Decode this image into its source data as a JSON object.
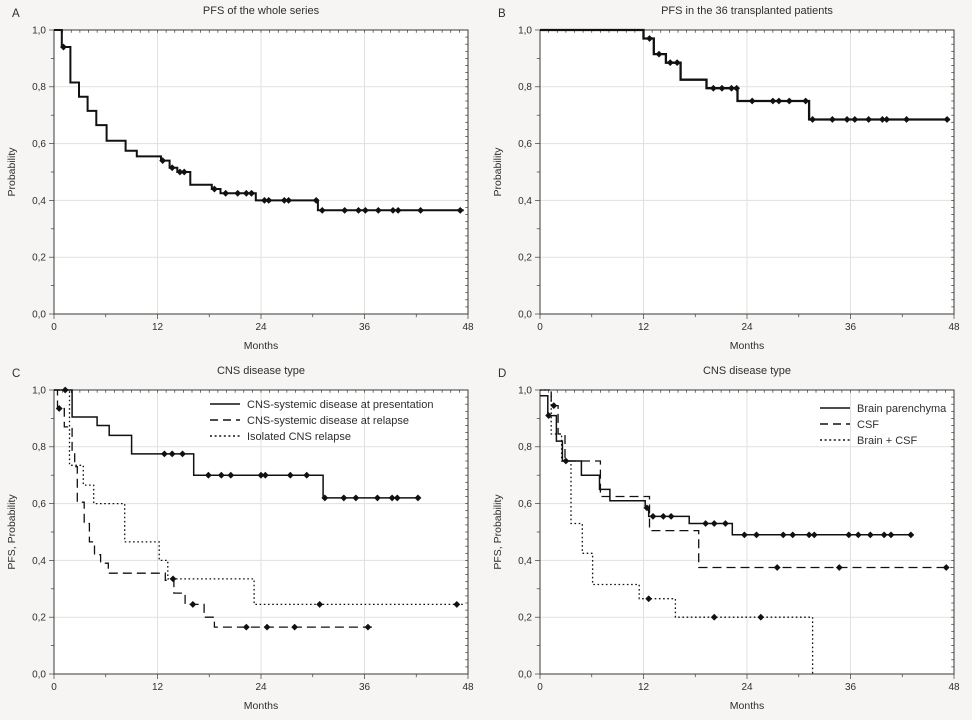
{
  "figure": {
    "background": "#f6f5f3",
    "plot_bg": "#ffffff",
    "grid_color": "#e3e1df",
    "frame_color": "#3a3a3a",
    "line_color": "#111111",
    "censor_color": "#111111"
  },
  "axes": {
    "x": {
      "label": "Months",
      "range": [
        0,
        48
      ],
      "major_ticks": [
        0,
        12,
        24,
        36,
        48
      ],
      "tick_labels": [
        "0",
        "12",
        "24",
        "36",
        "48"
      ],
      "minor_ticks": [
        6,
        18,
        30,
        42
      ],
      "grid": [
        12,
        24,
        36
      ]
    },
    "y": {
      "range": [
        0,
        1
      ],
      "major_ticks": [
        0,
        0.2,
        0.4,
        0.6,
        0.8,
        1.0
      ],
      "tick_labels": [
        "0,0",
        "0,2",
        "0,4",
        "0,6",
        "0,8",
        "1,0"
      ],
      "minor_ticks": [
        0.1,
        0.3,
        0.5,
        0.7,
        0.9
      ],
      "grid": [
        0.2,
        0.4,
        0.6,
        0.8
      ]
    }
  },
  "chart_data": [
    {
      "letter": "A",
      "title": "PFS of the whole series",
      "type": "line",
      "xlabel": "Months",
      "ylabel": "Probability",
      "x_range": [
        0,
        48
      ],
      "y_range": [
        0,
        1
      ],
      "legend": false,
      "series": [
        {
          "name": "Whole series",
          "style": "solid",
          "width": 2.0,
          "end_x": 47.5,
          "steps": [
            [
              0,
              1.0
            ],
            [
              0.9,
              0.94
            ],
            [
              1.9,
              0.815
            ],
            [
              2.9,
              0.765
            ],
            [
              3.9,
              0.715
            ],
            [
              4.9,
              0.665
            ],
            [
              6.1,
              0.61
            ],
            [
              8.3,
              0.575
            ],
            [
              9.6,
              0.555
            ],
            [
              12.4,
              0.54
            ],
            [
              13.4,
              0.515
            ],
            [
              14.3,
              0.5
            ],
            [
              15.8,
              0.455
            ],
            [
              18.3,
              0.44
            ],
            [
              19.3,
              0.425
            ],
            [
              23.4,
              0.4
            ],
            [
              30.6,
              0.365
            ]
          ],
          "censors": [
            [
              1.1,
              0.94
            ],
            [
              12.6,
              0.54
            ],
            [
              13.7,
              0.515
            ],
            [
              14.6,
              0.5
            ],
            [
              15.1,
              0.5
            ],
            [
              18.6,
              0.44
            ],
            [
              19.9,
              0.425
            ],
            [
              21.3,
              0.425
            ],
            [
              22.3,
              0.425
            ],
            [
              22.9,
              0.425
            ],
            [
              24.4,
              0.4
            ],
            [
              24.9,
              0.4
            ],
            [
              26.7,
              0.4
            ],
            [
              27.2,
              0.4
            ],
            [
              30.4,
              0.4
            ],
            [
              31.1,
              0.365
            ],
            [
              33.7,
              0.365
            ],
            [
              35.3,
              0.365
            ],
            [
              36.1,
              0.365
            ],
            [
              37.6,
              0.365
            ],
            [
              39.3,
              0.365
            ],
            [
              39.9,
              0.365
            ],
            [
              42.5,
              0.365
            ],
            [
              47.1,
              0.365
            ]
          ]
        }
      ]
    },
    {
      "letter": "B",
      "title": "PFS in the 36 transplanted patients",
      "type": "line",
      "xlabel": "Months",
      "ylabel": "Probability",
      "x_range": [
        0,
        48
      ],
      "y_range": [
        0,
        1
      ],
      "legend": false,
      "series": [
        {
          "name": "Transplanted patients",
          "style": "solid",
          "width": 2.3,
          "end_x": 47.5,
          "steps": [
            [
              0,
              1.0
            ],
            [
              12.0,
              0.97
            ],
            [
              13.2,
              0.915
            ],
            [
              14.6,
              0.885
            ],
            [
              16.3,
              0.825
            ],
            [
              19.3,
              0.795
            ],
            [
              22.9,
              0.75
            ],
            [
              31.2,
              0.685
            ]
          ],
          "censors": [
            [
              12.7,
              0.97
            ],
            [
              13.8,
              0.915
            ],
            [
              15.1,
              0.885
            ],
            [
              15.9,
              0.885
            ],
            [
              20.1,
              0.795
            ],
            [
              21.1,
              0.795
            ],
            [
              22.2,
              0.795
            ],
            [
              22.8,
              0.795
            ],
            [
              24.6,
              0.75
            ],
            [
              27.0,
              0.75
            ],
            [
              27.7,
              0.75
            ],
            [
              28.9,
              0.75
            ],
            [
              30.8,
              0.75
            ],
            [
              31.6,
              0.685
            ],
            [
              33.9,
              0.685
            ],
            [
              35.6,
              0.685
            ],
            [
              36.5,
              0.685
            ],
            [
              38.1,
              0.685
            ],
            [
              39.7,
              0.685
            ],
            [
              40.2,
              0.685
            ],
            [
              42.5,
              0.685
            ],
            [
              47.2,
              0.685
            ]
          ]
        }
      ]
    },
    {
      "letter": "C",
      "title": "CNS disease type",
      "type": "line",
      "xlabel": "Months",
      "ylabel": "PFS, Probability",
      "x_range": [
        0,
        48
      ],
      "y_range": [
        0,
        1
      ],
      "legend": true,
      "series": [
        {
          "name": "CNS-systemic disease at presentation",
          "style": "solid",
          "width": 1.5,
          "end_x": 42.5,
          "steps": [
            [
              0,
              1.0
            ],
            [
              2.1,
              0.905
            ],
            [
              5.0,
              0.875
            ],
            [
              6.4,
              0.84
            ],
            [
              9.0,
              0.775
            ],
            [
              16.2,
              0.7
            ],
            [
              31.2,
              0.62
            ]
          ],
          "censors": [
            [
              1.3,
              1.0
            ],
            [
              12.8,
              0.775
            ],
            [
              13.7,
              0.775
            ],
            [
              14.9,
              0.775
            ],
            [
              17.9,
              0.7
            ],
            [
              19.4,
              0.7
            ],
            [
              20.5,
              0.7
            ],
            [
              24.0,
              0.7
            ],
            [
              24.5,
              0.7
            ],
            [
              27.4,
              0.7
            ],
            [
              29.3,
              0.7
            ],
            [
              31.4,
              0.62
            ],
            [
              33.6,
              0.62
            ],
            [
              35.0,
              0.62
            ],
            [
              37.5,
              0.62
            ],
            [
              39.2,
              0.62
            ],
            [
              39.8,
              0.62
            ],
            [
              42.2,
              0.62
            ]
          ]
        },
        {
          "name": "CNS-systemic disease at relapse",
          "style": "dashed",
          "width": 1.3,
          "end_x": 37.4,
          "steps": [
            [
              0,
              1.0
            ],
            [
              0.4,
              0.935
            ],
            [
              1.2,
              0.87
            ],
            [
              2.1,
              0.78
            ],
            [
              2.4,
              0.73
            ],
            [
              2.7,
              0.605
            ],
            [
              3.5,
              0.53
            ],
            [
              4.1,
              0.465
            ],
            [
              4.7,
              0.42
            ],
            [
              5.4,
              0.39
            ],
            [
              6.3,
              0.355
            ],
            [
              12.9,
              0.33
            ],
            [
              13.9,
              0.285
            ],
            [
              15.2,
              0.245
            ],
            [
              17.4,
              0.2
            ],
            [
              18.6,
              0.165
            ]
          ],
          "censors": [
            [
              0.6,
              0.935
            ],
            [
              16.1,
              0.245
            ],
            [
              22.3,
              0.165
            ],
            [
              24.7,
              0.165
            ],
            [
              27.9,
              0.165
            ],
            [
              36.4,
              0.165
            ]
          ]
        },
        {
          "name": "Isolated CNS relapse",
          "style": "dotted",
          "width": 1.3,
          "end_x": 47.6,
          "steps": [
            [
              0,
              1.0
            ],
            [
              1.8,
              0.735
            ],
            [
              3.4,
              0.665
            ],
            [
              4.6,
              0.6
            ],
            [
              8.2,
              0.465
            ],
            [
              12.2,
              0.4
            ],
            [
              13.2,
              0.335
            ],
            [
              23.2,
              0.245
            ]
          ],
          "censors": [
            [
              13.8,
              0.335
            ],
            [
              30.8,
              0.245
            ],
            [
              46.7,
              0.245
            ]
          ]
        }
      ]
    },
    {
      "letter": "D",
      "title": "CNS disease type",
      "type": "line",
      "xlabel": "Months",
      "ylabel": "PFS, Probability",
      "x_range": [
        0,
        48
      ],
      "y_range": [
        0,
        1
      ],
      "legend": true,
      "series": [
        {
          "name": "Brain parenchyma",
          "style": "solid",
          "width": 1.5,
          "end_x": 43.3,
          "steps": [
            [
              0,
              0.98
            ],
            [
              0.9,
              0.91
            ],
            [
              1.9,
              0.82
            ],
            [
              2.6,
              0.75
            ],
            [
              4.8,
              0.7
            ],
            [
              6.9,
              0.65
            ],
            [
              8.1,
              0.61
            ],
            [
              12.2,
              0.585
            ],
            [
              12.6,
              0.555
            ],
            [
              17.3,
              0.53
            ],
            [
              22.3,
              0.49
            ]
          ],
          "censors": [
            [
              1.0,
              0.91
            ],
            [
              3.0,
              0.75
            ],
            [
              12.4,
              0.585
            ],
            [
              13.1,
              0.555
            ],
            [
              14.3,
              0.555
            ],
            [
              15.2,
              0.555
            ],
            [
              19.2,
              0.53
            ],
            [
              20.2,
              0.53
            ],
            [
              21.5,
              0.53
            ],
            [
              23.7,
              0.49
            ],
            [
              25.1,
              0.49
            ],
            [
              28.2,
              0.49
            ],
            [
              29.3,
              0.49
            ],
            [
              31.2,
              0.49
            ],
            [
              31.8,
              0.49
            ],
            [
              35.8,
              0.49
            ],
            [
              36.9,
              0.49
            ],
            [
              38.3,
              0.49
            ],
            [
              39.9,
              0.49
            ],
            [
              40.7,
              0.49
            ],
            [
              43.0,
              0.49
            ]
          ]
        },
        {
          "name": "CSF",
          "style": "dashed",
          "width": 1.3,
          "end_x": 47.7,
          "steps": [
            [
              0,
              1.0
            ],
            [
              1.3,
              0.945
            ],
            [
              2.1,
              0.845
            ],
            [
              2.9,
              0.75
            ],
            [
              7.0,
              0.625
            ],
            [
              12.7,
              0.505
            ],
            [
              18.4,
              0.375
            ]
          ],
          "censors": [
            [
              1.6,
              0.945
            ],
            [
              27.5,
              0.375
            ],
            [
              34.7,
              0.375
            ],
            [
              47.1,
              0.375
            ]
          ]
        },
        {
          "name": "Brain + CSF",
          "style": "dotted",
          "width": 1.3,
          "end_x": 31.6,
          "steps": [
            [
              0,
              1.0
            ],
            [
              1.3,
              0.845
            ],
            [
              2.5,
              0.75
            ],
            [
              3.6,
              0.53
            ],
            [
              4.9,
              0.425
            ],
            [
              6.1,
              0.315
            ],
            [
              11.5,
              0.265
            ],
            [
              15.7,
              0.2
            ],
            [
              31.6,
              0.0
            ]
          ],
          "censors": [
            [
              12.6,
              0.265
            ],
            [
              20.2,
              0.2
            ],
            [
              25.6,
              0.2
            ]
          ]
        }
      ]
    }
  ]
}
